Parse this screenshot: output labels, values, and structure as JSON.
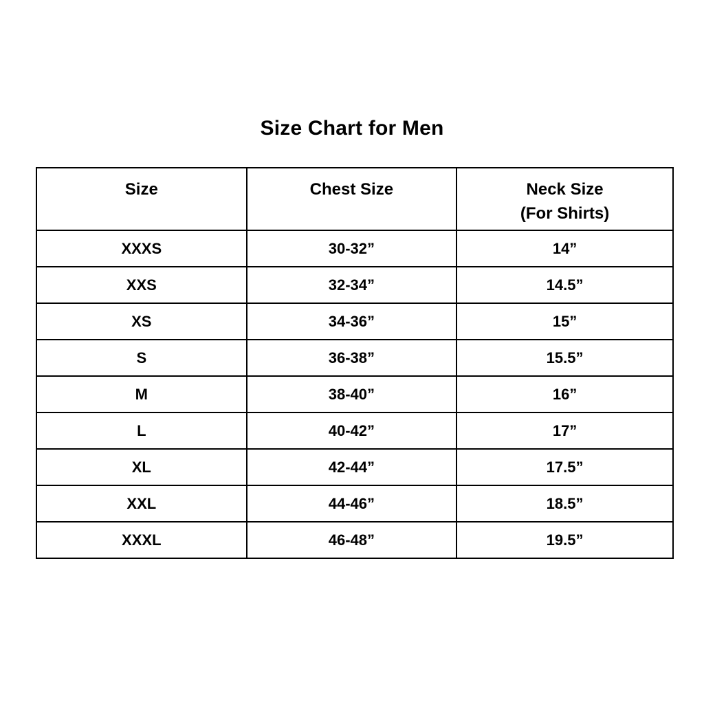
{
  "page": {
    "title": "Size Chart for Men"
  },
  "chart_data": {
    "type": "table",
    "title": "Size Chart for Men",
    "columns": [
      "Size",
      "Chest Size",
      "Neck Size (For Shirts)"
    ],
    "header_display": {
      "size": "Size",
      "chest": "Chest Size",
      "neck_line1": "Neck Size",
      "neck_line2": "(For Shirts)"
    },
    "rows": [
      [
        "XXXS",
        "30-32”",
        "14”"
      ],
      [
        "XXS",
        "32-34”",
        "14.5”"
      ],
      [
        "XS",
        "34-36”",
        "15”"
      ],
      [
        "S",
        "36-38”",
        "15.5”"
      ],
      [
        "M",
        "38-40”",
        "16”"
      ],
      [
        "L",
        "40-42”",
        "17”"
      ],
      [
        "XL",
        "42-44”",
        "17.5”"
      ],
      [
        "XXL",
        "44-46”",
        "18.5”"
      ],
      [
        "XXXL",
        "46-48”",
        "19.5”"
      ]
    ],
    "layout": {
      "text_color": "#000000",
      "border_color": "#000000",
      "background_color": "#ffffff"
    }
  }
}
